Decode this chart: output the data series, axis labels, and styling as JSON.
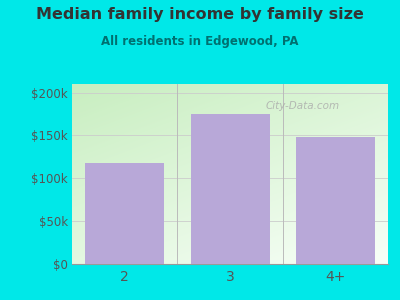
{
  "categories": [
    "2",
    "3",
    "4+"
  ],
  "values": [
    118000,
    175000,
    148000
  ],
  "bar_color": "#b8a8d8",
  "title": "Median family income by family size",
  "subtitle": "All residents in Edgewood, PA",
  "title_color": "#333333",
  "subtitle_color": "#007070",
  "background_color": "#00e8e8",
  "ylabel_ticks": [
    0,
    50000,
    100000,
    150000,
    200000
  ],
  "ylabel_labels": [
    "$0",
    "$50k",
    "$100k",
    "$150k",
    "$200k"
  ],
  "ylim": [
    0,
    210000
  ],
  "tick_color": "#555555",
  "watermark": "City-Data.com",
  "plot_grad_top_left": "#c8eec0",
  "plot_grad_bottom_right": "#f8fff8",
  "grid_color": "#cccccc",
  "sep_color": "#bbbbbb"
}
